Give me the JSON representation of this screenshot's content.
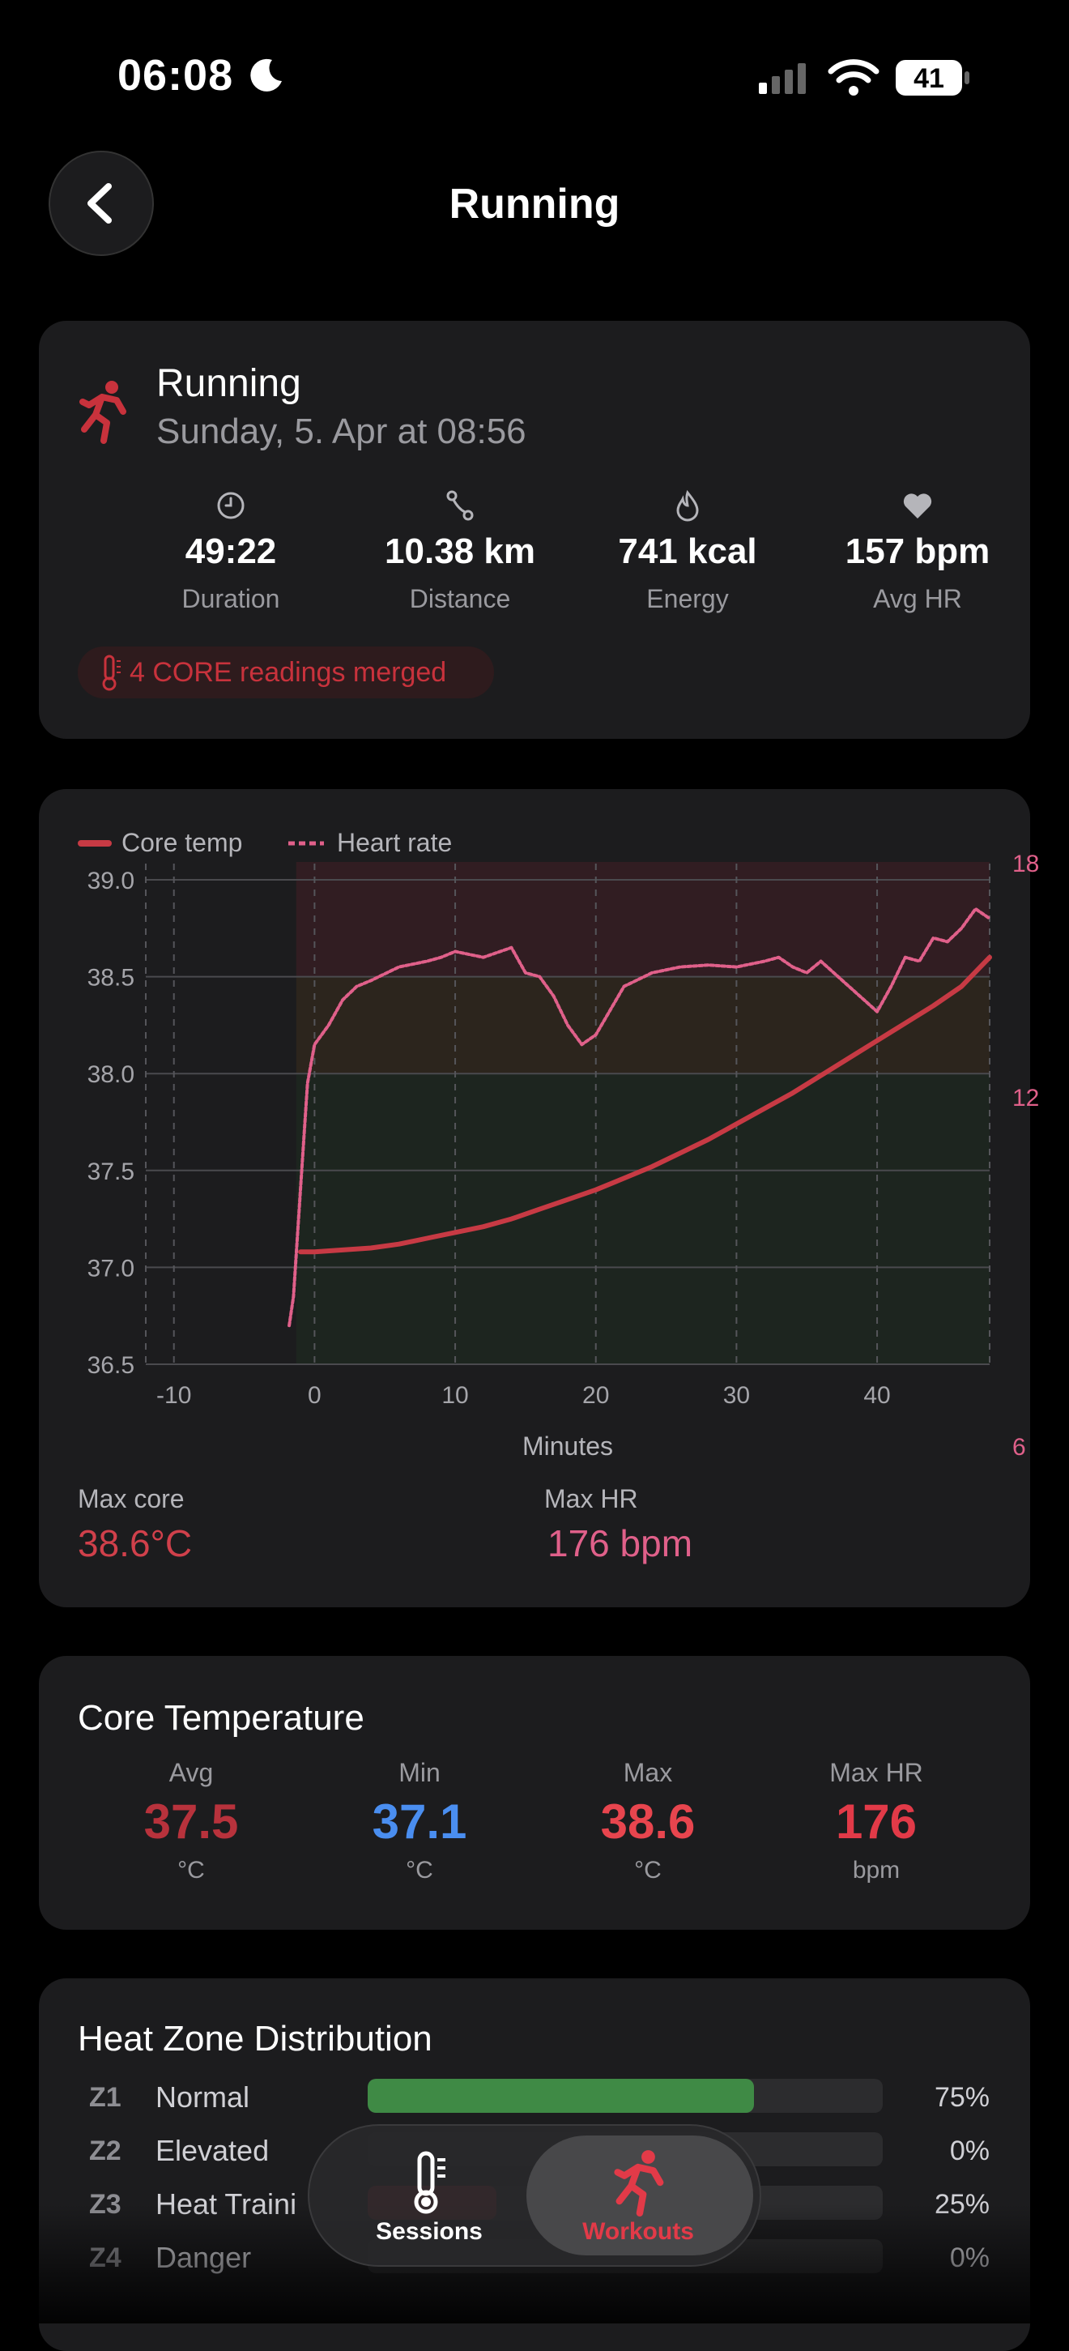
{
  "status_bar": {
    "time": "06:08",
    "battery": "41"
  },
  "nav": {
    "title": "Running"
  },
  "workout": {
    "type": "Running",
    "date": "Sunday, 5. Apr at 08:56",
    "stats": [
      {
        "value": "49:22",
        "label": "Duration"
      },
      {
        "value": "10.38 km",
        "label": "Distance"
      },
      {
        "value": "741 kcal",
        "label": "Energy"
      },
      {
        "value": "157 bpm",
        "label": "Avg HR"
      }
    ],
    "badge": "4 CORE readings merged"
  },
  "chart_data": {
    "type": "line",
    "legend": [
      "Core temp",
      "Heart rate"
    ],
    "xlabel": "Minutes",
    "xlim": [
      -12,
      48
    ],
    "ylim": [
      36.5,
      39.0
    ],
    "y_ticks": [
      "39.0",
      "38.5",
      "38.0",
      "37.5",
      "37.0",
      "36.5"
    ],
    "x_ticks": [
      "-10",
      "0",
      "10",
      "20",
      "30",
      "40"
    ],
    "y2_ticks": [
      "18",
      "12",
      "6"
    ],
    "series": [
      {
        "name": "Core temp",
        "color": "#c73a44",
        "x": [
          -1,
          0,
          2,
          4,
          6,
          8,
          10,
          12,
          14,
          16,
          18,
          20,
          22,
          24,
          26,
          28,
          30,
          32,
          34,
          36,
          38,
          40,
          42,
          44,
          46,
          48
        ],
        "y": [
          37.08,
          37.08,
          37.09,
          37.1,
          37.12,
          37.15,
          37.18,
          37.21,
          37.25,
          37.3,
          37.35,
          37.4,
          37.46,
          37.52,
          37.59,
          37.66,
          37.74,
          37.82,
          37.9,
          37.99,
          38.08,
          38.17,
          38.26,
          38.35,
          38.45,
          38.6
        ]
      },
      {
        "name": "Heart rate",
        "color": "#e0608a",
        "x": [
          -1.8,
          -1.5,
          -1.0,
          -0.5,
          0,
          0.5,
          1,
          2,
          3,
          4,
          6,
          8,
          9,
          10,
          12,
          14,
          15,
          16,
          17,
          18,
          19,
          20,
          22,
          24,
          26,
          28,
          30,
          32,
          33,
          34,
          35,
          36,
          38,
          40,
          41,
          42,
          43,
          44,
          45,
          46,
          47,
          48
        ],
        "y": [
          36.7,
          36.85,
          37.4,
          37.95,
          38.15,
          38.2,
          38.25,
          38.38,
          38.45,
          38.48,
          38.55,
          38.58,
          38.6,
          38.63,
          38.6,
          38.65,
          38.52,
          38.5,
          38.4,
          38.25,
          38.15,
          38.2,
          38.45,
          38.52,
          38.55,
          38.56,
          38.55,
          38.58,
          38.6,
          38.55,
          38.52,
          38.58,
          38.45,
          38.32,
          38.45,
          38.6,
          38.58,
          38.7,
          38.68,
          38.75,
          38.85,
          38.8
        ]
      }
    ]
  },
  "chart_summary": {
    "max_core_label": "Max core",
    "max_core_value": "38.6°C",
    "max_hr_label": "Max HR",
    "max_hr_value": "176 bpm"
  },
  "core_temperature": {
    "title": "Core Temperature",
    "items": [
      {
        "label": "Avg",
        "value": "37.5",
        "unit": "°C",
        "color": "#b8323c"
      },
      {
        "label": "Min",
        "value": "37.1",
        "unit": "°C",
        "color": "#4a8ef0"
      },
      {
        "label": "Max",
        "value": "38.6",
        "unit": "°C",
        "color": "#e8454e"
      },
      {
        "label": "Max HR",
        "value": "176",
        "unit": "bpm",
        "color": "#e23a48"
      }
    ]
  },
  "heat_zones": {
    "title": "Heat Zone Distribution",
    "zones": [
      {
        "code": "Z1",
        "name": "Normal",
        "percent": "75%",
        "fraction": 0.75,
        "color": "#3f8a45"
      },
      {
        "code": "Z2",
        "name": "Elevated",
        "percent": "0%",
        "fraction": 0,
        "color": "#b8860b"
      },
      {
        "code": "Z3",
        "name": "Heat Traini",
        "percent": "25%",
        "fraction": 0.25,
        "color": "#a12a33"
      },
      {
        "code": "Z4",
        "name": "Danger",
        "percent": "0%",
        "fraction": 0,
        "color": "#7a1a22"
      }
    ]
  },
  "tab_bar": {
    "items": [
      {
        "label": "Sessions"
      },
      {
        "label": "Workouts"
      }
    ]
  },
  "colors": {
    "accent": "#e23a48",
    "card": "#1c1c1e"
  }
}
